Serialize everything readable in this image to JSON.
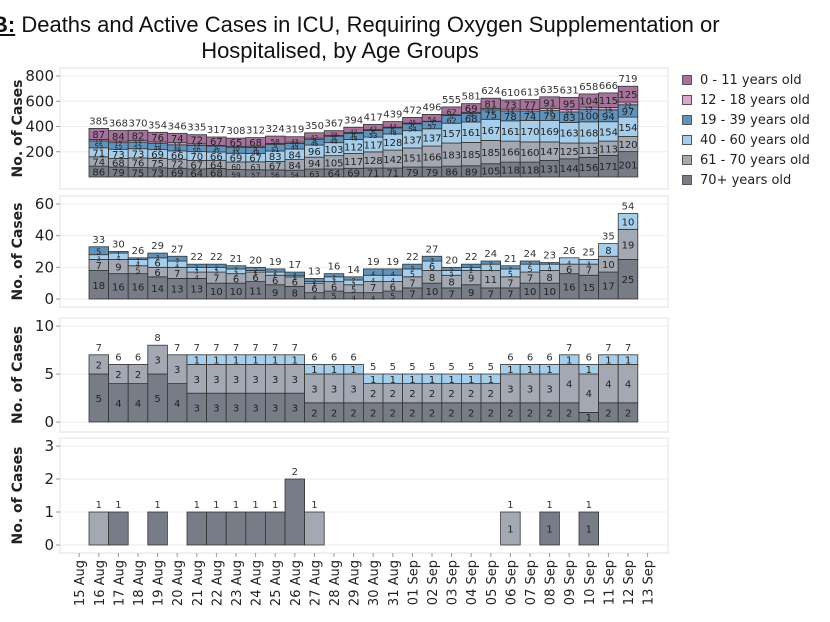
{
  "title": {
    "fig_label": "B:",
    "line1": " Deaths and Active Cases in ICU, Requiring Oxygen Supplementation or",
    "line2": "Hospitalised, by Age Groups"
  },
  "legend": [
    {
      "label": "0 - 11 years old",
      "color": "#a4729a"
    },
    {
      "label": "12 - 18 years old",
      "color": "#d7a8cc"
    },
    {
      "label": "19 - 39 years old",
      "color": "#5f93bd"
    },
    {
      "label": "40 - 60 years old",
      "color": "#a6cde9"
    },
    {
      "label": "61 - 70 years old",
      "color": "#a3a8b3"
    },
    {
      "label": "70+ years old",
      "color": "#777c87"
    }
  ],
  "chart_data": [
    {
      "type": "bar",
      "stacked": true,
      "panel": "hospitalised",
      "ylabel": "No. of Cases",
      "ylim": [
        0,
        800
      ],
      "yticks": [
        200,
        400,
        600,
        800
      ],
      "categories": [
        "15 Aug",
        "16 Aug",
        "17 Aug",
        "18 Aug",
        "19 Aug",
        "20 Aug",
        "21 Aug",
        "22 Aug",
        "23 Aug",
        "24 Aug",
        "25 Aug",
        "26 Aug",
        "27 Aug",
        "28 Aug",
        "29 Aug",
        "30 Aug",
        "31 Aug",
        "01 Sep",
        "02 Sep",
        "03 Sep",
        "04 Sep",
        "05 Sep",
        "06 Sep",
        "07 Sep",
        "08 Sep",
        "09 Sep",
        "10 Sep",
        "11 Sep",
        "12 Sep",
        "13 Sep"
      ],
      "totals": [
        null,
        385,
        368,
        370,
        354,
        346,
        335,
        317,
        308,
        312,
        324,
        319,
        350,
        367,
        394,
        417,
        439,
        472,
        496,
        555,
        581,
        624,
        610,
        613,
        635,
        631,
        658,
        666,
        719,
        null
      ],
      "series": [
        {
          "name": "70+ years old",
          "values": [
            null,
            86,
            79,
            75,
            73,
            69,
            64,
            68,
            59,
            57,
            56,
            54,
            63,
            64,
            69,
            71,
            71,
            79,
            79,
            86,
            89,
            105,
            118,
            118,
            131,
            144,
            156,
            171,
            201,
            null
          ]
        },
        {
          "name": "61 - 70 years old",
          "values": [
            null,
            74,
            68,
            76,
            75,
            72,
            67,
            64,
            60,
            63,
            67,
            84,
            94,
            105,
            117,
            128,
            142,
            151,
            166,
            183,
            185,
            185,
            166,
            160,
            147,
            125,
            113,
            113,
            120,
            null
          ]
        },
        {
          "name": "40 - 60 years old",
          "values": [
            null,
            71,
            73,
            73,
            69,
            66,
            70,
            66,
            69,
            67,
            83,
            84,
            96,
            103,
            112,
            117,
            128,
            137,
            137,
            157,
            161,
            167,
            161,
            170,
            169,
            163,
            168,
            154,
            154,
            null
          ]
        },
        {
          "name": "19 - 39 years old",
          "values": [
            null,
            55,
            52,
            52,
            48,
            48,
            50,
            47,
            45,
            48,
            51,
            44,
            46,
            48,
            48,
            53,
            48,
            54,
            57,
            62,
            68,
            75,
            78,
            74,
            79,
            83,
            100,
            94,
            97,
            null
          ]
        },
        {
          "name": "12 - 18 years old",
          "values": [
            null,
            12,
            12,
            12,
            13,
            17,
            12,
            5,
            10,
            9,
            9,
            10,
            9,
            9,
            6,
            6,
            6,
            6,
            3,
            5,
            9,
            11,
            14,
            14,
            18,
            21,
            17,
            19,
            22,
            null
          ]
        },
        {
          "name": "0 - 11 years old",
          "values": [
            null,
            87,
            84,
            82,
            76,
            74,
            72,
            67,
            65,
            68,
            58,
            43,
            42,
            38,
            42,
            42,
            44,
            45,
            54,
            62,
            69,
            81,
            73,
            77,
            91,
            95,
            104,
            115,
            125,
            null
          ]
        }
      ]
    },
    {
      "type": "bar",
      "stacked": true,
      "panel": "oxygen",
      "ylabel": "No. of Cases",
      "ylim": [
        0,
        60
      ],
      "yticks": [
        0,
        20,
        40,
        60
      ],
      "totals": [
        null,
        33,
        30,
        26,
        29,
        27,
        22,
        22,
        21,
        20,
        19,
        17,
        13,
        16,
        14,
        19,
        19,
        22,
        27,
        20,
        22,
        24,
        21,
        24,
        23,
        26,
        25,
        35,
        54,
        null
      ],
      "series": [
        {
          "name": "70+ years old",
          "values": [
            null,
            18,
            16,
            16,
            14,
            13,
            13,
            10,
            10,
            11,
            9,
            8,
            4,
            5,
            4,
            4,
            5,
            7,
            10,
            7,
            9,
            7,
            7,
            10,
            10,
            16,
            15,
            17,
            25,
            null
          ]
        },
        {
          "name": "61 - 70 years old",
          "values": [
            null,
            7,
            9,
            5,
            6,
            7,
            4,
            7,
            6,
            6,
            6,
            6,
            6,
            6,
            5,
            7,
            6,
            7,
            8,
            8,
            9,
            11,
            7,
            7,
            8,
            6,
            7,
            10,
            19,
            null
          ]
        },
        {
          "name": "40 - 60 years old",
          "values": [
            null,
            3,
            4,
            4,
            6,
            4,
            3,
            3,
            3,
            1,
            2,
            1,
            1,
            3,
            3,
            4,
            4,
            5,
            6,
            3,
            2,
            4,
            5,
            5,
            4,
            4,
            3,
            8,
            10,
            null
          ]
        },
        {
          "name": "19 - 39 years old",
          "values": [
            null,
            5,
            1,
            1,
            3,
            3,
            2,
            2,
            2,
            2,
            2,
            2,
            2,
            2,
            2,
            4,
            4,
            3,
            3,
            2,
            2,
            2,
            2,
            2,
            1,
            0,
            0,
            0,
            0,
            null
          ]
        }
      ]
    },
    {
      "type": "bar",
      "stacked": true,
      "panel": "icu",
      "ylabel": "No. of Cases",
      "ylim": [
        0,
        10
      ],
      "yticks": [
        0,
        5,
        10
      ],
      "totals": [
        null,
        7,
        6,
        6,
        8,
        7,
        7,
        7,
        7,
        7,
        7,
        7,
        6,
        6,
        6,
        5,
        5,
        5,
        5,
        5,
        5,
        5,
        6,
        6,
        6,
        7,
        6,
        7,
        7,
        null
      ],
      "series": [
        {
          "name": "70+ years old",
          "values": [
            null,
            5,
            4,
            4,
            5,
            4,
            3,
            3,
            3,
            3,
            3,
            3,
            2,
            2,
            2,
            2,
            2,
            2,
            2,
            2,
            2,
            2,
            2,
            2,
            2,
            2,
            1,
            2,
            2,
            null
          ]
        },
        {
          "name": "61 - 70 years old",
          "values": [
            null,
            2,
            2,
            2,
            3,
            3,
            3,
            3,
            3,
            3,
            3,
            3,
            3,
            3,
            3,
            2,
            2,
            2,
            2,
            2,
            2,
            2,
            3,
            3,
            3,
            4,
            4,
            4,
            4,
            null
          ]
        },
        {
          "name": "40 - 60 years old",
          "values": [
            null,
            0,
            0,
            0,
            0,
            0,
            1,
            1,
            1,
            1,
            1,
            1,
            1,
            1,
            1,
            1,
            1,
            1,
            1,
            1,
            1,
            1,
            1,
            1,
            1,
            1,
            1,
            1,
            1,
            null
          ]
        }
      ]
    },
    {
      "type": "bar",
      "stacked": true,
      "panel": "deaths",
      "ylabel": "No. of Cases",
      "ylim": [
        0,
        3
      ],
      "yticks": [
        0,
        1,
        2,
        3
      ],
      "totals": [
        null,
        1,
        1,
        null,
        1,
        null,
        1,
        1,
        1,
        1,
        1,
        2,
        1,
        null,
        null,
        null,
        null,
        null,
        null,
        null,
        null,
        null,
        1,
        null,
        1,
        null,
        1,
        null,
        null,
        null
      ],
      "series": [
        {
          "name": "70+ years old",
          "values": [
            null,
            0,
            1,
            null,
            1,
            null,
            1,
            1,
            1,
            1,
            1,
            2,
            0,
            null,
            null,
            null,
            null,
            null,
            null,
            null,
            null,
            null,
            0,
            null,
            1,
            null,
            1,
            null,
            null,
            null
          ]
        },
        {
          "name": "61 - 70 years old",
          "values": [
            null,
            1,
            0,
            null,
            0,
            null,
            0,
            0,
            0,
            0,
            0,
            0,
            1,
            null,
            null,
            null,
            null,
            null,
            null,
            null,
            null,
            null,
            1,
            null,
            0,
            null,
            0,
            null,
            null,
            null
          ]
        }
      ],
      "inner_labels_shown": [
        22,
        24,
        26
      ]
    }
  ]
}
